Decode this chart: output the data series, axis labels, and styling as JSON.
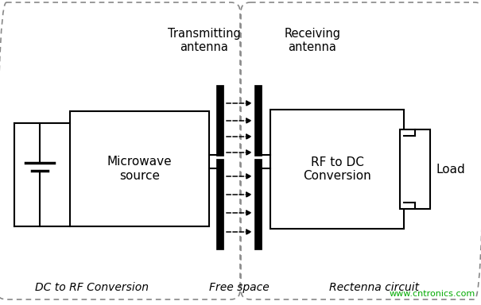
{
  "bg_color": "#ffffff",
  "border_color": "#888888",
  "box_color": "#000000",
  "text_color": "#000000",
  "watermark_color": "#00aa00",
  "fig_width": 6.05,
  "fig_height": 3.84,
  "dpi": 100,
  "left_region_label": "DC to RF Conversion",
  "right_region_label": "Rectenna circuit",
  "free_space_label": "Free space",
  "tx_antenna_label": "Transmitting\nantenna",
  "rx_antenna_label": "Receiving\nantenna",
  "microwave_label": "Microwave\nsource",
  "rfdc_label": "RF to DC\nConversion",
  "load_label": "Load",
  "watermark": "www.cntronics.com"
}
